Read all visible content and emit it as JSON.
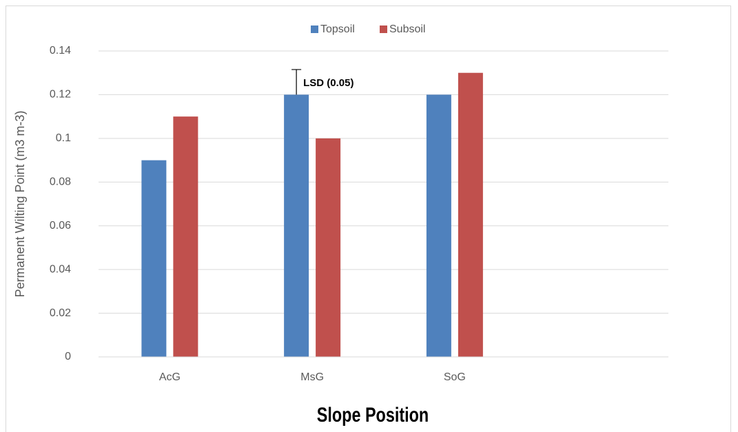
{
  "chart_data": {
    "type": "bar",
    "y_label": "Permanent Wilting Point (m3 m-3)",
    "x_label": "Slope Position",
    "categories": [
      "AcG",
      "MsG",
      "SoG",
      null
    ],
    "series": [
      {
        "name": "Topsoil",
        "color": "#4f81bd",
        "values": [
          0.09,
          0.12,
          0.12,
          null
        ],
        "errors": [
          null,
          0.0115,
          null,
          null
        ]
      },
      {
        "name": "Subsoil",
        "color": "#c0504d",
        "values": [
          0.11,
          0.1,
          0.13,
          null
        ]
      }
    ],
    "annotation": "LSD (0.05)",
    "ylim": [
      0,
      0.14
    ],
    "yticks": [
      0,
      0.02,
      0.04,
      0.06,
      0.08,
      0.1,
      0.12,
      0.14
    ],
    "grid": true,
    "legend": "top"
  }
}
